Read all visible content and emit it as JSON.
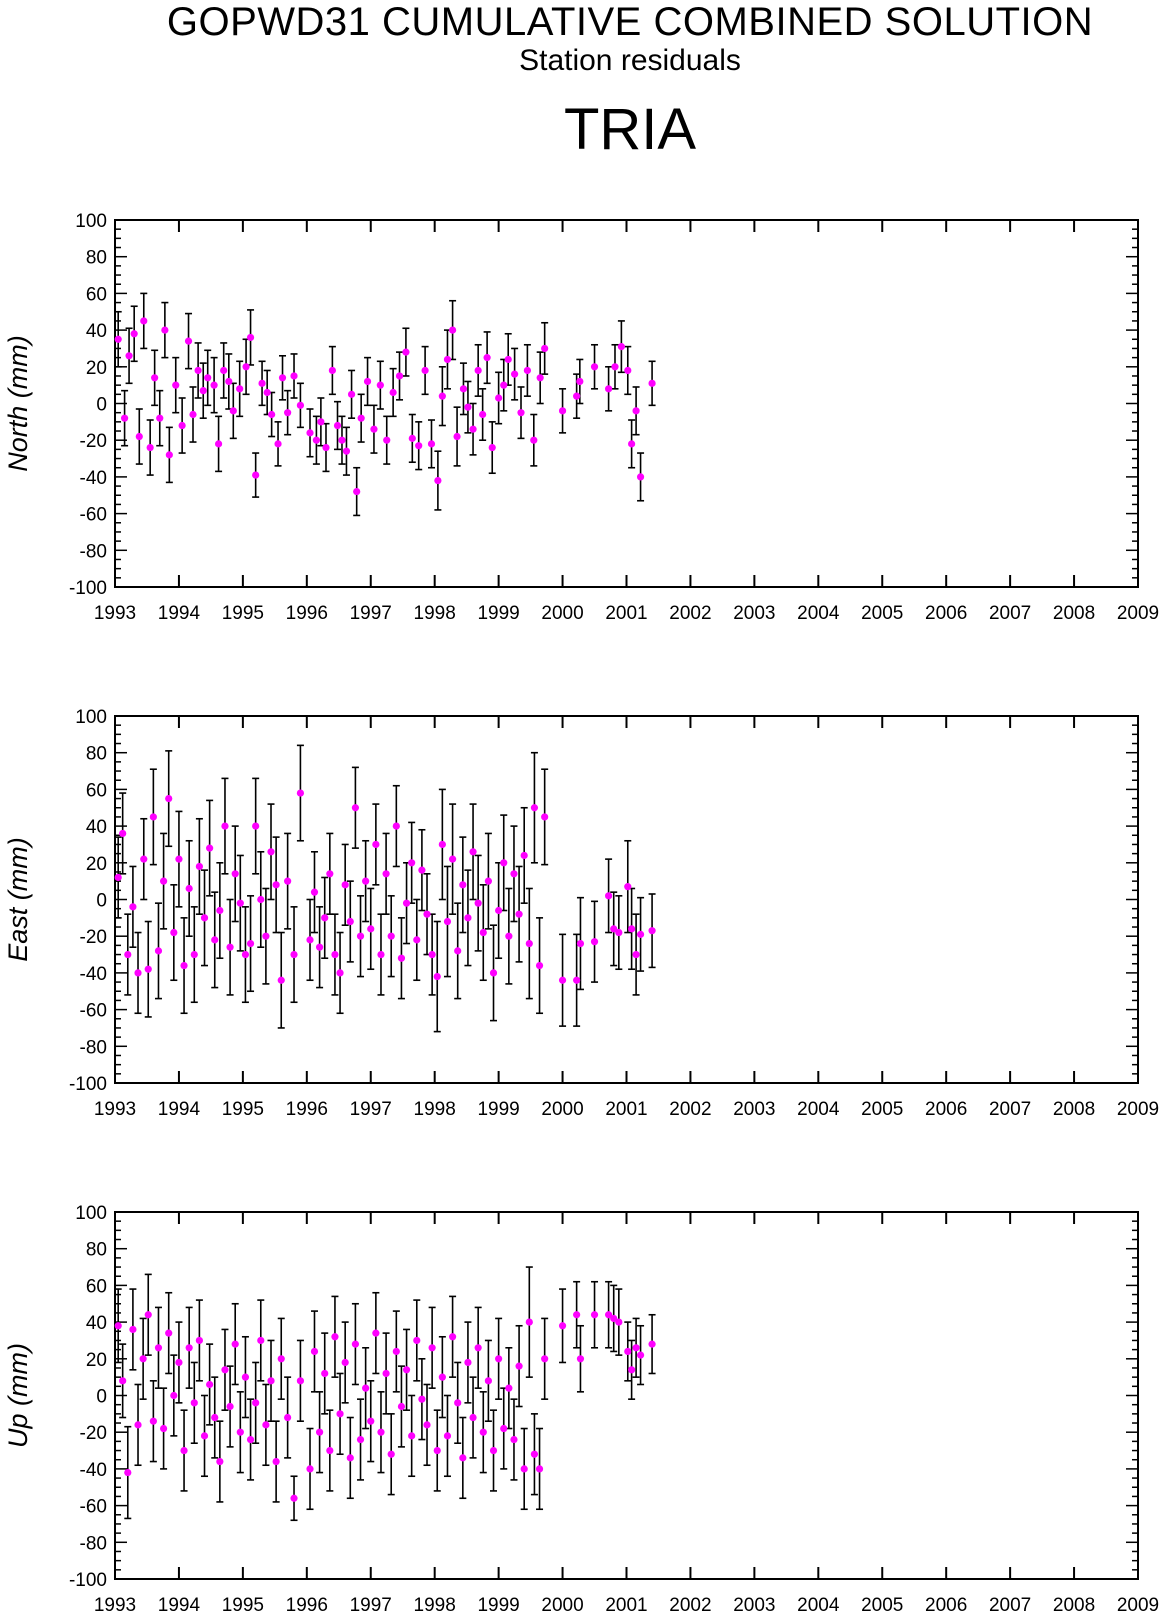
{
  "header": {
    "title": "GOPWD31 CUMULATIVE COMBINED SOLUTION",
    "subtitle": "Station residuals",
    "station": "TRIA"
  },
  "colors": {
    "point": "#ff00ff",
    "errorbar": "#000000",
    "frame": "#000000"
  },
  "chart_data": [
    {
      "type": "scatter",
      "ylabel": "North (mm)",
      "xlim": [
        1993,
        2009
      ],
      "ylim": [
        -100,
        100
      ],
      "x_ticks": [
        "1993",
        "1994",
        "1995",
        "1996",
        "1997",
        "1998",
        "1999",
        "2000",
        "2001",
        "2002",
        "2003",
        "2004",
        "2005",
        "2006",
        "2007",
        "2008",
        "2009"
      ],
      "y_ticks": [
        "100",
        "80",
        "60",
        "40",
        "20",
        "0",
        "-20",
        "-40",
        "-60",
        "-80",
        "-100"
      ],
      "grid": false,
      "series": [
        {
          "x": [
            1993.05,
            1993.15,
            1993.22,
            1993.3,
            1993.38,
            1993.45,
            1993.55,
            1993.62,
            1993.7,
            1993.78,
            1993.85,
            1993.95,
            1994.05,
            1994.15,
            1994.22,
            1994.3,
            1994.38,
            1994.45,
            1994.55,
            1994.62,
            1994.7,
            1994.78,
            1994.85,
            1994.95,
            1995.05,
            1995.12,
            1995.2,
            1995.3,
            1995.38,
            1995.45,
            1995.55,
            1995.62,
            1995.7,
            1995.8,
            1995.9,
            1996.05,
            1996.15,
            1996.22,
            1996.3,
            1996.4,
            1996.48,
            1996.55,
            1996.62,
            1996.7,
            1996.78,
            1996.85,
            1996.95,
            1997.05,
            1997.15,
            1997.25,
            1997.35,
            1997.45,
            1997.55,
            1997.65,
            1997.75,
            1997.85,
            1997.95,
            1998.05,
            1998.12,
            1998.2,
            1998.28,
            1998.35,
            1998.45,
            1998.52,
            1998.6,
            1998.68,
            1998.75,
            1998.82,
            1998.9,
            1999.0,
            1999.08,
            1999.15,
            1999.25,
            1999.35,
            1999.45,
            1999.55,
            1999.65,
            1999.72,
            2000.0,
            2000.22,
            2000.27,
            2000.5,
            2000.72,
            2000.82,
            2000.92,
            2001.02,
            2001.08,
            2001.15,
            2001.22,
            2001.4
          ],
          "y": [
            35,
            -8,
            26,
            38,
            -18,
            45,
            -24,
            14,
            -8,
            40,
            -28,
            10,
            -12,
            34,
            -6,
            18,
            7,
            14,
            10,
            -22,
            18,
            12,
            -4,
            8,
            20,
            36,
            -39,
            11,
            6,
            -6,
            -22,
            14,
            -5,
            15,
            -1,
            -16,
            -20,
            -10,
            -24,
            18,
            -12,
            -20,
            -26,
            5,
            -48,
            -8,
            12,
            -14,
            10,
            -20,
            6,
            15,
            28,
            -19,
            -23,
            18,
            -22,
            -42,
            4,
            24,
            40,
            -18,
            8,
            -2,
            -14,
            18,
            -6,
            25,
            -24,
            3,
            10,
            24,
            16,
            -5,
            18,
            -20,
            14,
            30,
            -4,
            4,
            12,
            20,
            8,
            20,
            31,
            18,
            -22,
            -4,
            -40,
            11
          ],
          "err": [
            15,
            15,
            15,
            15,
            15,
            15,
            15,
            15,
            15,
            15,
            15,
            15,
            15,
            15,
            15,
            15,
            15,
            15,
            15,
            15,
            15,
            15,
            15,
            15,
            15,
            15,
            12,
            12,
            12,
            12,
            12,
            12,
            12,
            12,
            12,
            13,
            13,
            13,
            13,
            13,
            13,
            13,
            13,
            13,
            13,
            13,
            13,
            13,
            13,
            13,
            13,
            13,
            13,
            13,
            13,
            13,
            13,
            16,
            16,
            16,
            16,
            16,
            14,
            14,
            14,
            14,
            14,
            14,
            14,
            14,
            14,
            14,
            14,
            14,
            14,
            14,
            14,
            14,
            12,
            12,
            12,
            12,
            12,
            12,
            14,
            13,
            13,
            13,
            13,
            12
          ]
        }
      ]
    },
    {
      "type": "scatter",
      "ylabel": "East (mm)",
      "xlim": [
        1993,
        2009
      ],
      "ylim": [
        -100,
        100
      ],
      "x_ticks": [
        "1993",
        "1994",
        "1995",
        "1996",
        "1997",
        "1998",
        "1999",
        "2000",
        "2001",
        "2002",
        "2003",
        "2004",
        "2005",
        "2006",
        "2007",
        "2008",
        "2009"
      ],
      "y_ticks": [
        "100",
        "80",
        "60",
        "40",
        "20",
        "0",
        "-20",
        "-40",
        "-60",
        "-80",
        "-100"
      ],
      "grid": false,
      "series": [
        {
          "x": [
            1993.05,
            1993.12,
            1993.2,
            1993.28,
            1993.36,
            1993.45,
            1993.52,
            1993.6,
            1993.68,
            1993.76,
            1993.84,
            1993.92,
            1994.0,
            1994.08,
            1994.16,
            1994.24,
            1994.32,
            1994.4,
            1994.48,
            1994.56,
            1994.64,
            1994.72,
            1994.8,
            1994.88,
            1994.96,
            1995.04,
            1995.12,
            1995.2,
            1995.28,
            1995.36,
            1995.44,
            1995.52,
            1995.6,
            1995.7,
            1995.8,
            1995.9,
            1996.05,
            1996.12,
            1996.2,
            1996.28,
            1996.36,
            1996.44,
            1996.52,
            1996.6,
            1996.68,
            1996.76,
            1996.84,
            1996.92,
            1997.0,
            1997.08,
            1997.16,
            1997.24,
            1997.32,
            1997.4,
            1997.48,
            1997.56,
            1997.64,
            1997.72,
            1997.8,
            1997.88,
            1997.96,
            1998.04,
            1998.12,
            1998.2,
            1998.28,
            1998.36,
            1998.44,
            1998.52,
            1998.6,
            1998.68,
            1998.76,
            1998.84,
            1998.92,
            1999.0,
            1999.08,
            1999.16,
            1999.24,
            1999.32,
            1999.4,
            1999.48,
            1999.56,
            1999.64,
            1999.72,
            2000.0,
            2000.22,
            2000.28,
            2000.5,
            2000.72,
            2000.8,
            2000.88,
            2001.02,
            2001.08,
            2001.15,
            2001.22,
            2001.4
          ],
          "y": [
            12,
            36,
            -30,
            -4,
            -40,
            22,
            -38,
            45,
            -28,
            10,
            55,
            -18,
            22,
            -36,
            6,
            -30,
            18,
            -10,
            28,
            -22,
            -6,
            40,
            -26,
            14,
            -2,
            -30,
            -24,
            40,
            0,
            -20,
            26,
            8,
            -44,
            10,
            -30,
            58,
            -22,
            4,
            -26,
            -10,
            14,
            -30,
            -40,
            8,
            -12,
            50,
            -20,
            10,
            -16,
            30,
            -30,
            14,
            -20,
            40,
            -32,
            -2,
            20,
            -22,
            16,
            -8,
            -30,
            -42,
            30,
            -12,
            22,
            -28,
            8,
            -10,
            26,
            -2,
            -18,
            10,
            -40,
            -6,
            20,
            -20,
            14,
            -8,
            24,
            -24,
            50,
            -36,
            45,
            -44,
            -44,
            -24,
            -23,
            2,
            -16,
            -18,
            7,
            -16,
            -30,
            -19,
            -17
          ],
          "err": [
            22,
            22,
            22,
            22,
            22,
            22,
            26,
            26,
            26,
            26,
            26,
            26,
            26,
            26,
            26,
            26,
            26,
            26,
            26,
            26,
            26,
            26,
            26,
            26,
            26,
            26,
            26,
            26,
            26,
            26,
            26,
            26,
            26,
            26,
            26,
            26,
            22,
            22,
            22,
            22,
            22,
            22,
            22,
            22,
            22,
            22,
            22,
            22,
            22,
            22,
            22,
            22,
            22,
            22,
            22,
            22,
            22,
            22,
            22,
            22,
            22,
            30,
            30,
            30,
            30,
            26,
            26,
            26,
            26,
            26,
            26,
            26,
            26,
            26,
            26,
            26,
            26,
            26,
            26,
            30,
            30,
            26,
            26,
            25,
            25,
            25,
            22,
            20,
            20,
            20,
            25,
            22,
            22,
            20,
            20
          ]
        }
      ]
    },
    {
      "type": "scatter",
      "ylabel": "Up (mm)",
      "xlim": [
        1993,
        2009
      ],
      "ylim": [
        -100,
        100
      ],
      "x_ticks": [
        "1993",
        "1994",
        "1995",
        "1996",
        "1997",
        "1998",
        "1999",
        "2000",
        "2001",
        "2002",
        "2003",
        "2004",
        "2005",
        "2006",
        "2007",
        "2008",
        "2009"
      ],
      "y_ticks": [
        "100",
        "80",
        "60",
        "40",
        "20",
        "0",
        "-20",
        "-40",
        "-60",
        "-80",
        "-100"
      ],
      "grid": false,
      "series": [
        {
          "x": [
            1993.05,
            1993.12,
            1993.2,
            1993.28,
            1993.36,
            1993.44,
            1993.52,
            1993.6,
            1993.68,
            1993.76,
            1993.84,
            1993.92,
            1994.0,
            1994.08,
            1994.16,
            1994.24,
            1994.32,
            1994.4,
            1994.48,
            1994.56,
            1994.64,
            1994.72,
            1994.8,
            1994.88,
            1994.96,
            1995.04,
            1995.12,
            1995.2,
            1995.28,
            1995.36,
            1995.44,
            1995.52,
            1995.6,
            1995.7,
            1995.8,
            1995.9,
            1996.05,
            1996.12,
            1996.2,
            1996.28,
            1996.36,
            1996.44,
            1996.52,
            1996.6,
            1996.68,
            1996.76,
            1996.84,
            1996.92,
            1997.0,
            1997.08,
            1997.16,
            1997.24,
            1997.32,
            1997.4,
            1997.48,
            1997.56,
            1997.64,
            1997.72,
            1997.8,
            1997.88,
            1997.96,
            1998.04,
            1998.12,
            1998.2,
            1998.28,
            1998.36,
            1998.44,
            1998.52,
            1998.6,
            1998.68,
            1998.76,
            1998.84,
            1998.92,
            1999.0,
            1999.08,
            1999.16,
            1999.24,
            1999.32,
            1999.4,
            1999.48,
            1999.56,
            1999.64,
            1999.72,
            2000.0,
            2000.22,
            2000.28,
            2000.5,
            2000.72,
            2000.8,
            2000.88,
            2001.02,
            2001.08,
            2001.15,
            2001.22,
            2001.4
          ],
          "y": [
            38,
            8,
            -42,
            36,
            -16,
            20,
            44,
            -14,
            26,
            -18,
            34,
            0,
            18,
            -30,
            26,
            -4,
            30,
            -22,
            6,
            -12,
            -36,
            14,
            -6,
            28,
            -20,
            10,
            -24,
            -4,
            30,
            -16,
            8,
            -36,
            20,
            -12,
            -56,
            8,
            -40,
            24,
            -20,
            12,
            -30,
            32,
            -10,
            18,
            -34,
            28,
            -24,
            4,
            -14,
            34,
            -20,
            12,
            -32,
            24,
            -6,
            14,
            -22,
            30,
            -2,
            -16,
            26,
            -30,
            10,
            -22,
            32,
            -4,
            -34,
            18,
            -12,
            26,
            -20,
            8,
            -30,
            20,
            -18,
            4,
            -24,
            16,
            -40,
            40,
            -32,
            -40,
            20,
            38,
            44,
            20,
            44,
            44,
            42,
            40,
            24,
            14,
            26,
            22,
            28
          ],
          "err": [
            20,
            20,
            25,
            22,
            22,
            22,
            22,
            22,
            22,
            22,
            22,
            22,
            22,
            22,
            22,
            22,
            22,
            22,
            22,
            22,
            22,
            22,
            22,
            22,
            22,
            22,
            22,
            22,
            22,
            22,
            22,
            22,
            22,
            22,
            12,
            22,
            22,
            22,
            22,
            22,
            22,
            22,
            22,
            22,
            22,
            22,
            22,
            22,
            22,
            22,
            22,
            22,
            22,
            22,
            22,
            22,
            22,
            22,
            22,
            22,
            22,
            22,
            22,
            22,
            22,
            22,
            22,
            22,
            22,
            22,
            22,
            22,
            22,
            22,
            22,
            22,
            22,
            22,
            22,
            30,
            22,
            22,
            22,
            20,
            18,
            18,
            18,
            18,
            18,
            18,
            16,
            16,
            16,
            16,
            16
          ]
        }
      ]
    }
  ]
}
